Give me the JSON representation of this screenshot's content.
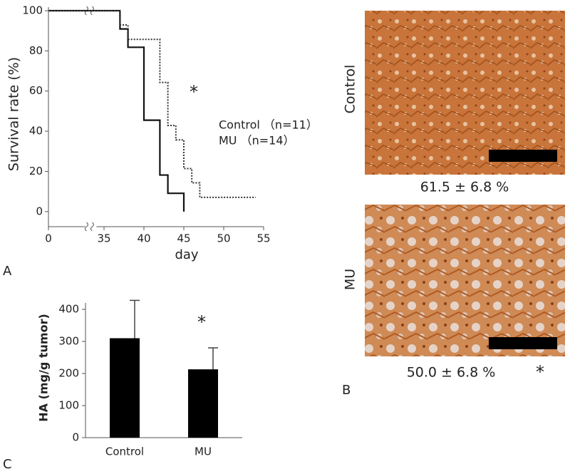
{
  "chart_data": [
    {
      "type": "line",
      "step": true,
      "y_label": "Survival rate (%)",
      "x_label": "day",
      "axis_break": true,
      "xlim": [
        0,
        55
      ],
      "xticks": [
        0,
        35,
        40,
        45,
        50,
        55
      ],
      "ylim": [
        -7.5,
        100
      ],
      "yticks": [
        0,
        20,
        40,
        60,
        80,
        100
      ],
      "series": [
        {
          "name": "Control （n=11）",
          "color": "#111111",
          "dash": false,
          "x": [
            0,
            37,
            38,
            40,
            42,
            43,
            45
          ],
          "values": [
            100,
            90.9,
            81.8,
            45.5,
            18.2,
            9.1,
            0
          ]
        },
        {
          "name": "MU （n=14）",
          "color": "#333333",
          "dash": true,
          "x": [
            0,
            37,
            38,
            42,
            43,
            44,
            45,
            46,
            47,
            54
          ],
          "values": [
            100,
            92.9,
            85.7,
            64.3,
            42.9,
            35.7,
            21.4,
            14.3,
            7.1,
            7.1
          ]
        }
      ],
      "annotation": "*",
      "panel": "A"
    },
    {
      "type": "bar",
      "y_label": "HA (mg/g tumor)",
      "categories": [
        "Control",
        "MU"
      ],
      "values": [
        310,
        213
      ],
      "errors": [
        118,
        67
      ],
      "color": "#000000",
      "ylim": [
        0,
        420
      ],
      "yticks": [
        0,
        100,
        200,
        300,
        400
      ],
      "annotation": "*",
      "panel": "C"
    }
  ],
  "images": {
    "panel": "B",
    "items": [
      {
        "label": "Control",
        "caption": "61.5 ± 6.8 %"
      },
      {
        "label": "MU",
        "caption": "50.0 ± 6.8 %",
        "mark": "*"
      }
    ]
  }
}
